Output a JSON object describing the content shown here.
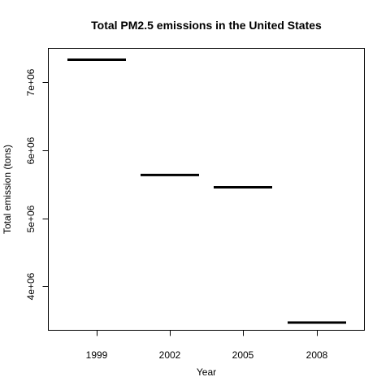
{
  "chart_data": {
    "type": "bar",
    "title": "Total PM2.5 emissions in the United States",
    "xlabel": "Year",
    "ylabel": "Total emission (tons)",
    "categories": [
      "1999",
      "2002",
      "2005",
      "2008"
    ],
    "values": [
      7332967,
      5635780,
      5454703,
      3464206
    ],
    "ylim": [
      3350000,
      7500000
    ],
    "yticks": [
      4000000,
      5000000,
      6000000,
      7000000
    ],
    "ytick_labels": [
      "4e+06",
      "5e+06",
      "6e+06",
      "7e+06"
    ],
    "grid": false,
    "legend": "none",
    "bar_color": "#000000"
  }
}
